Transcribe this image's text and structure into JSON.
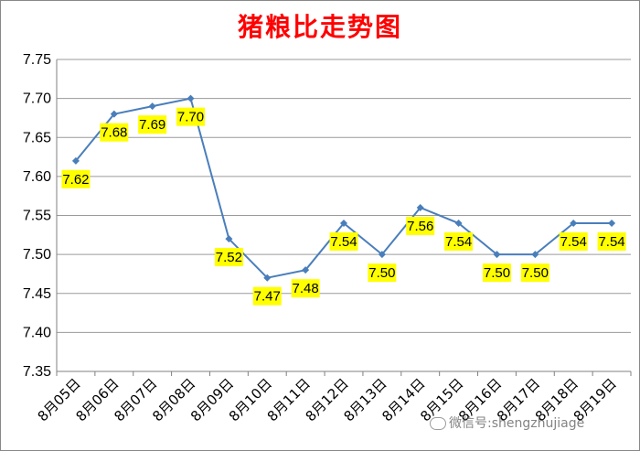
{
  "chart_data": {
    "type": "line",
    "title": "猪粮比走势图",
    "categories": [
      "8月05日",
      "8月06日",
      "8月07日",
      "8月08日",
      "8月09日",
      "8月10日",
      "8月11日",
      "8月12日",
      "8月13日",
      "8月14日",
      "8月15日",
      "8月16日",
      "8月17日",
      "8月18日",
      "8月19日"
    ],
    "series": [
      {
        "values": [
          7.62,
          7.68,
          7.69,
          7.7,
          7.52,
          7.47,
          7.48,
          7.54,
          7.5,
          7.56,
          7.54,
          7.5,
          7.5,
          7.54,
          7.54
        ]
      }
    ],
    "data_labels": [
      "7.62",
      "7.68",
      "7.69",
      "7.70",
      "7.52",
      "7.47",
      "7.48",
      "7.54",
      "7.50",
      "7.56",
      "7.54",
      "7.50",
      "7.50",
      "7.54",
      "7.54"
    ],
    "ylim": [
      7.35,
      7.75
    ],
    "yticks": [
      "7.35",
      "7.40",
      "7.45",
      "7.50",
      "7.55",
      "7.60",
      "7.65",
      "7.70",
      "7.75"
    ],
    "xlabel": "",
    "ylabel": "",
    "grid": "horizontal",
    "legend": "none",
    "colors": {
      "line": "#4a7ebb",
      "title": "#ff0000",
      "label_bg": "#ffff00",
      "grid": "#9a9a9a"
    }
  },
  "watermark": "微信号:shengzhujiage"
}
